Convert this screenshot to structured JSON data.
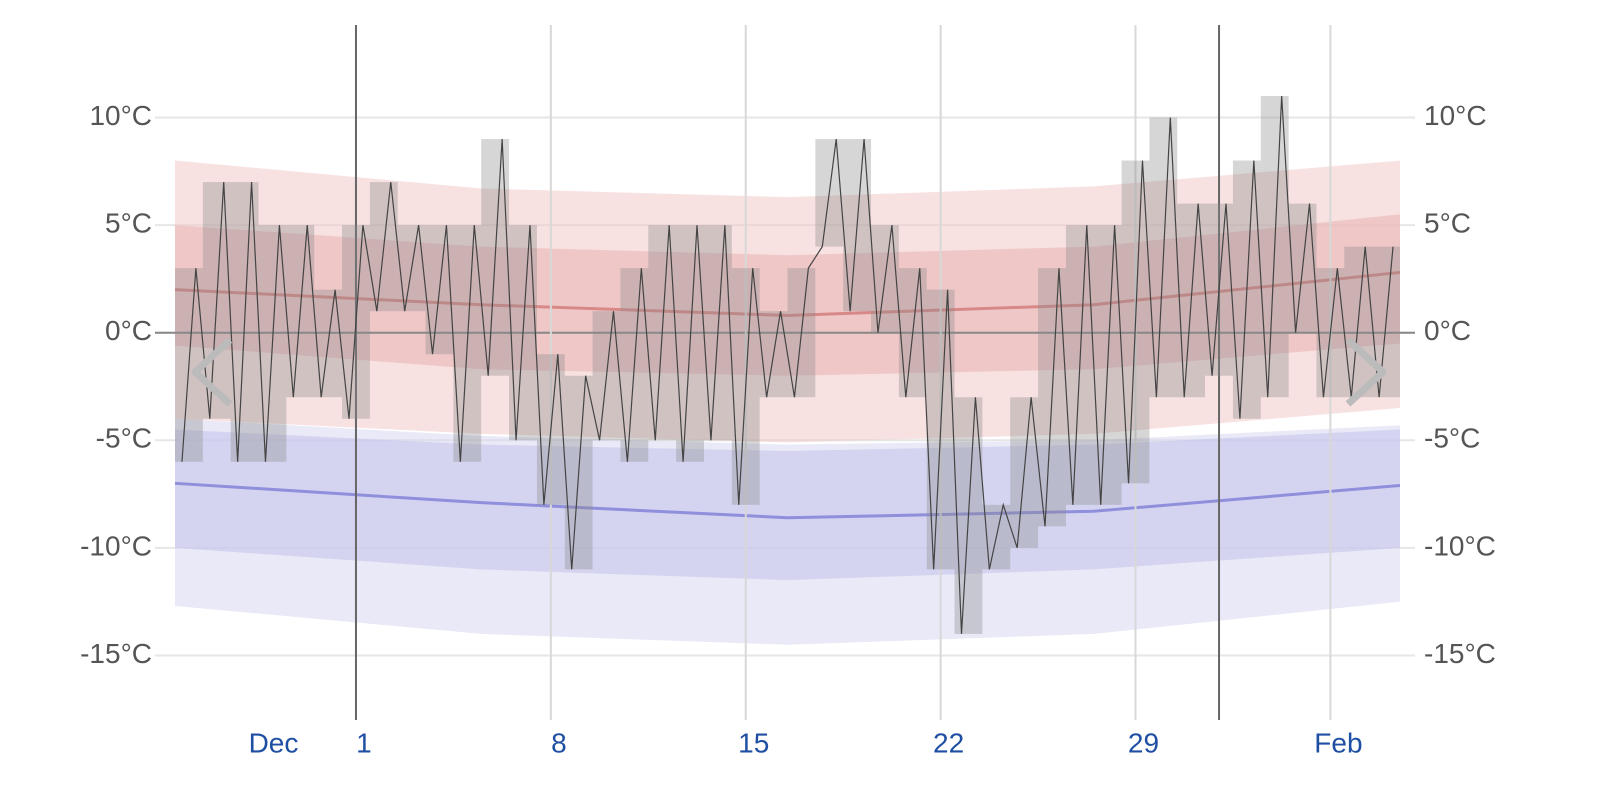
{
  "chart_data": {
    "type": "temperature-range",
    "xlim": [
      0,
      44
    ],
    "ylim": [
      -18,
      14.3
    ],
    "yticks": [
      {
        "value": 10,
        "label": "10°C"
      },
      {
        "value": 5,
        "label": "5°C"
      },
      {
        "value": 0,
        "label": "0°C"
      },
      {
        "value": -5,
        "label": "-5°C"
      },
      {
        "value": -10,
        "label": "-10°C"
      },
      {
        "value": -15,
        "label": "-15°C"
      }
    ],
    "xticks": [
      {
        "value": 3.25,
        "label": "Dec"
      },
      {
        "value": 6.5,
        "label": "1"
      },
      {
        "value": 13.5,
        "label": "8"
      },
      {
        "value": 20.5,
        "label": "15"
      },
      {
        "value": 27.5,
        "label": "22"
      },
      {
        "value": 34.5,
        "label": "29"
      },
      {
        "value": 41.5,
        "label": "Feb"
      }
    ],
    "xgrid": [
      13.5,
      20.5,
      27.5,
      34.5,
      41.5
    ],
    "month_lines": [
      6.5,
      37.5
    ],
    "zero_line": 0,
    "band_x": [
      0,
      11,
      22,
      33,
      44
    ],
    "bands": [
      {
        "color": "#f3c9c9",
        "upper": [
          8,
          6.7,
          6.3,
          6.8,
          8
        ],
        "lower": [
          -4,
          -4.7,
          -5.1,
          -4.7,
          -3.5
        ]
      },
      {
        "color": "#e8b3b3",
        "upper": [
          5,
          4,
          3.6,
          4,
          5.5
        ],
        "lower": [
          -0.6,
          -1.7,
          -2,
          -1.7,
          -0.5
        ]
      },
      {
        "color": "#d7d7f0",
        "upper": [
          -4,
          -4.8,
          -5.2,
          -5,
          -4.3
        ],
        "lower": [
          -12.7,
          -14,
          -14.5,
          -14,
          -12.5
        ]
      },
      {
        "color": "#c3c3ec",
        "upper": [
          -4.5,
          -5.2,
          -5.5,
          -5.2,
          -4.5
        ],
        "lower": [
          -10,
          -11,
          -11.5,
          -11,
          -10
        ]
      }
    ],
    "series": [
      {
        "color": "#d98888",
        "values": [
          2,
          1.3,
          0.8,
          1.3,
          2.8
        ]
      },
      {
        "color": "#8f8fdc",
        "values": [
          -7,
          -7.9,
          -8.6,
          -8.3,
          -7.1
        ]
      }
    ],
    "bar_color": "#8a8a8a",
    "line_color": "#444444",
    "highs": [
      3,
      7,
      7,
      5,
      5,
      2,
      5,
      7,
      5,
      5,
      5,
      9,
      5,
      -1,
      -2,
      1,
      3,
      5,
      5,
      5,
      3,
      1,
      3,
      9,
      9,
      5,
      3,
      2,
      -3,
      -8,
      -3,
      3,
      5,
      5,
      8,
      10,
      6,
      6,
      8,
      11,
      6,
      3,
      4,
      4
    ],
    "lows": [
      -6,
      -4,
      -6,
      -6,
      -3,
      -3,
      -4,
      1,
      1,
      -1,
      -6,
      -2,
      -5,
      -8,
      -11,
      -5,
      -6,
      -5,
      -6,
      -5,
      -8,
      -3,
      -3,
      4,
      1,
      0,
      -3,
      -11,
      -14,
      -11,
      -10,
      -9,
      -8,
      -8,
      -7,
      -3,
      -3,
      -2,
      -4,
      -3,
      0,
      -3,
      -3,
      -3
    ]
  }
}
